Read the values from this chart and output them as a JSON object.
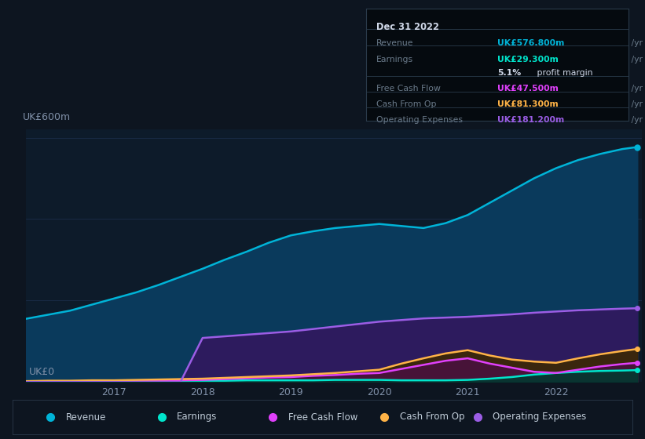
{
  "background_color": "#0d1520",
  "plot_bg_color": "#0d1b2a",
  "ylabel_top": "UK£600m",
  "ylabel_bottom": "UK£0",
  "years": [
    2016.0,
    2016.25,
    2016.5,
    2016.75,
    2017.0,
    2017.25,
    2017.5,
    2017.75,
    2018.0,
    2018.25,
    2018.5,
    2018.75,
    2019.0,
    2019.25,
    2019.5,
    2019.75,
    2020.0,
    2020.25,
    2020.5,
    2020.75,
    2021.0,
    2021.25,
    2021.5,
    2021.75,
    2022.0,
    2022.25,
    2022.5,
    2022.75,
    2022.92
  ],
  "revenue": [
    155,
    165,
    175,
    190,
    205,
    220,
    238,
    258,
    278,
    300,
    320,
    342,
    360,
    370,
    378,
    383,
    388,
    383,
    378,
    390,
    410,
    440,
    470,
    500,
    525,
    545,
    560,
    572,
    577
  ],
  "earnings": [
    1,
    1,
    1,
    2,
    2,
    2,
    3,
    3,
    3,
    3,
    4,
    4,
    4,
    4,
    5,
    5,
    5,
    4,
    4,
    4,
    5,
    8,
    12,
    18,
    22,
    25,
    27,
    28,
    29
  ],
  "free_cash_flow": [
    1,
    1,
    1,
    2,
    2,
    3,
    4,
    4,
    5,
    7,
    9,
    11,
    12,
    15,
    17,
    20,
    22,
    32,
    42,
    52,
    58,
    45,
    35,
    25,
    22,
    30,
    38,
    44,
    47
  ],
  "cash_from_op": [
    2,
    3,
    3,
    4,
    4,
    5,
    6,
    7,
    8,
    10,
    12,
    14,
    16,
    19,
    22,
    26,
    30,
    45,
    58,
    70,
    78,
    65,
    55,
    50,
    47,
    58,
    68,
    76,
    81
  ],
  "operating_expenses": [
    0,
    0,
    0,
    0,
    0,
    0,
    0,
    0,
    108,
    112,
    116,
    120,
    124,
    130,
    136,
    142,
    148,
    152,
    156,
    158,
    160,
    163,
    166,
    170,
    173,
    176,
    178,
    180,
    181
  ],
  "revenue_color": "#00b4d8",
  "earnings_color": "#00e5cc",
  "free_cash_flow_color": "#e040fb",
  "cash_from_op_color": "#ffb347",
  "operating_expenses_color": "#9b5de5",
  "revenue_fill": "#0a3a5c",
  "operating_expenses_fill": "#2d1b5e",
  "cash_from_op_fill": "#3d2800",
  "free_cash_flow_fill": "#4a1040",
  "earnings_fill": "#003a30",
  "ylim": [
    0,
    620
  ],
  "grid_color": "#1e3050",
  "text_color": "#8090a8",
  "info_box": {
    "date": "Dec 31 2022",
    "revenue_label": "Revenue",
    "revenue_value": "UK£576.800m",
    "revenue_color": "#00b4d8",
    "earnings_label": "Earnings",
    "earnings_value": "UK£29.300m",
    "earnings_color": "#00e5cc",
    "profit_bold": "5.1%",
    "profit_rest": " profit margin",
    "fcf_label": "Free Cash Flow",
    "fcf_value": "UK£47.500m",
    "fcf_color": "#e040fb",
    "cashop_label": "Cash From Op",
    "cashop_value": "UK£81.300m",
    "cashop_color": "#ffb347",
    "opex_label": "Operating Expenses",
    "opex_value": "UK£181.200m",
    "opex_color": "#9b5de5"
  },
  "legend": [
    {
      "label": "Revenue",
      "color": "#00b4d8"
    },
    {
      "label": "Earnings",
      "color": "#00e5cc"
    },
    {
      "label": "Free Cash Flow",
      "color": "#e040fb"
    },
    {
      "label": "Cash From Op",
      "color": "#ffb347"
    },
    {
      "label": "Operating Expenses",
      "color": "#9b5de5"
    }
  ]
}
